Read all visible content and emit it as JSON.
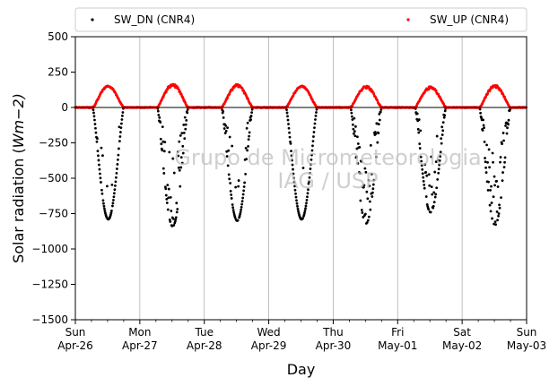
{
  "chart_data": {
    "type": "scatter",
    "xlabel": "Day",
    "ylabel": "Solar radiation (",
    "ylabel_math": "Wm",
    "ylabel_math_tail": "−2)",
    "xlim": [
      0,
      7
    ],
    "ylim": [
      -1500,
      500
    ],
    "yticks": [
      500,
      250,
      0,
      -250,
      -500,
      -750,
      -1000,
      -1250,
      -1500
    ],
    "ytick_labels": [
      "500",
      "250",
      "0",
      "−250",
      "−500",
      "−750",
      "−1000",
      "−1250",
      "−1500"
    ],
    "xticks": [
      {
        "day": 0,
        "line1": "Sun",
        "line2": "Apr-26"
      },
      {
        "day": 1,
        "line1": "Mon",
        "line2": "Apr-27"
      },
      {
        "day": 2,
        "line1": "Tue",
        "line2": "Apr-28"
      },
      {
        "day": 3,
        "line1": "Wed",
        "line2": "Apr-29"
      },
      {
        "day": 4,
        "line1": "Thu",
        "line2": "Apr-30"
      },
      {
        "day": 5,
        "line1": "Fri",
        "line2": "May-01"
      },
      {
        "day": 6,
        "line1": "Sat",
        "line2": "May-02"
      },
      {
        "day": 7,
        "line1": "Sun",
        "line2": "May-03"
      }
    ],
    "grid": "x",
    "legend_position": "top",
    "watermark": [
      "Grupo de Micrometeorologia",
      "IAG / USP"
    ],
    "series": [
      {
        "name": "SW_DN (CNR4)",
        "color": "#000000",
        "daily_peak": [
          -790,
          -840,
          -800,
          -790,
          -820,
          -740,
          -830
        ],
        "cloudiness": [
          0.1,
          0.6,
          0.35,
          0.1,
          0.55,
          0.45,
          0.7
        ]
      },
      {
        "name": "SW_UP (CNR4)",
        "color": "#ff0000",
        "daily_peak": [
          150,
          165,
          160,
          150,
          150,
          145,
          155
        ],
        "cloudiness": [
          0.1,
          0.6,
          0.35,
          0.1,
          0.55,
          0.45,
          0.7
        ]
      }
    ],
    "daylight": {
      "sunrise_frac": 0.27,
      "sunset_frac": 0.75
    }
  }
}
